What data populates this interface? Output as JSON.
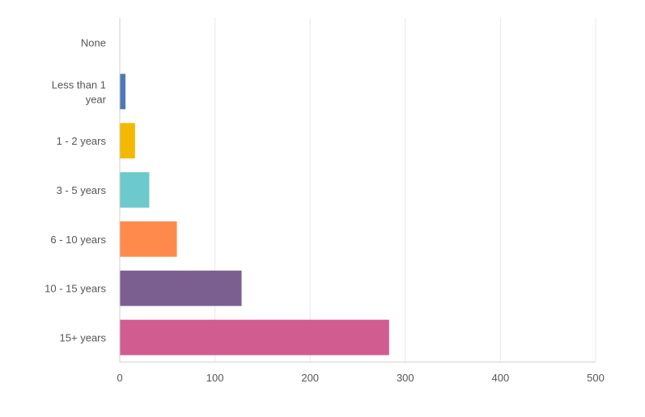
{
  "chart_data": {
    "type": "bar",
    "orientation": "horizontal",
    "categories": [
      [
        "None"
      ],
      [
        "Less than 1",
        "year"
      ],
      [
        "1 - 2 years"
      ],
      [
        "3 - 5 years"
      ],
      [
        "6 - 10 years"
      ],
      [
        "10 - 15 years"
      ],
      [
        "15+ years"
      ]
    ],
    "values": [
      0,
      6,
      16,
      31,
      60,
      128,
      283
    ],
    "colors": [
      "#4E79B5",
      "#4E79B5",
      "#F5B800",
      "#6CC9CC",
      "#FF8A4C",
      "#7B5F91",
      "#D15C8F"
    ],
    "xlim": [
      0,
      500
    ],
    "xticks": [
      "0",
      "100",
      "200",
      "300",
      "400",
      "500"
    ],
    "grid": "vertical",
    "title": "",
    "xlabel": "",
    "ylabel": ""
  }
}
